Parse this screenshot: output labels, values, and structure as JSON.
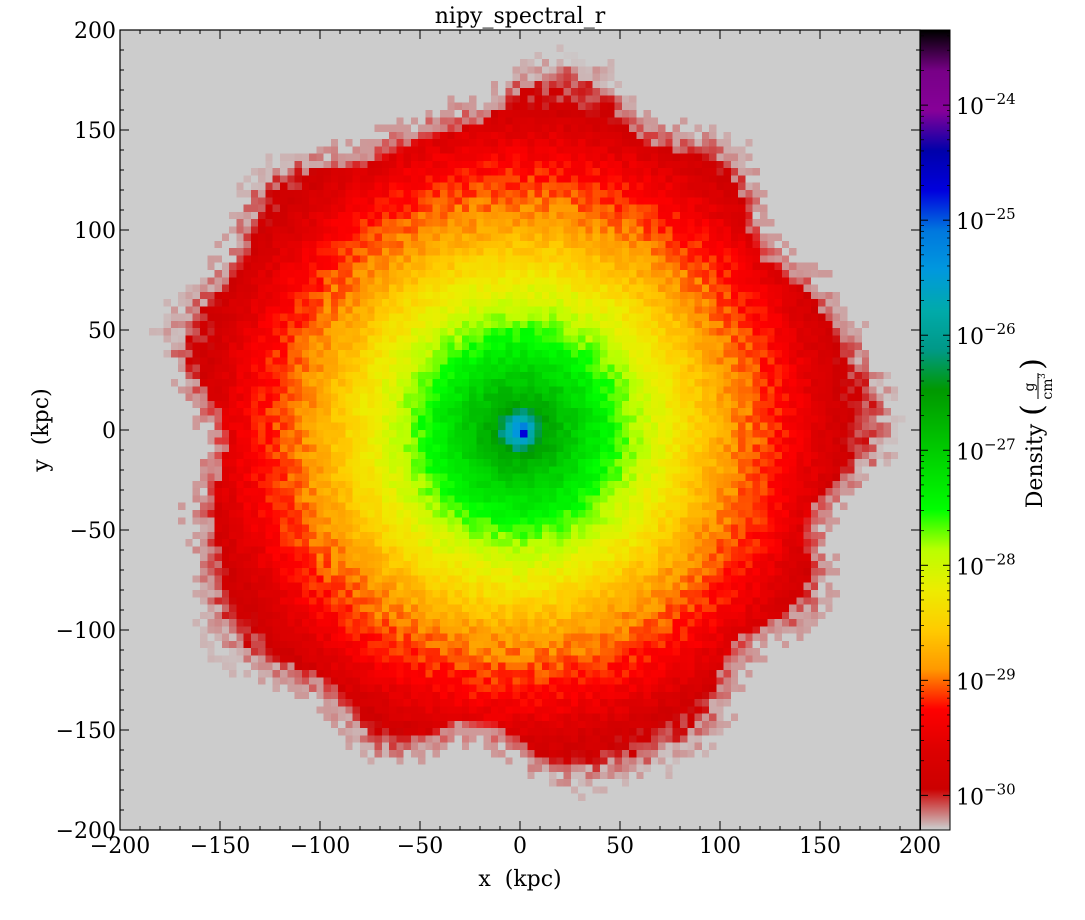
{
  "chart_data": {
    "type": "heatmap",
    "title": "nipy_spectral_r",
    "xlabel": "x  (kpc)",
    "ylabel": "y  (kpc)",
    "xlim": [
      -200,
      200
    ],
    "ylim": [
      -200,
      200
    ],
    "xticks": [
      -200,
      -150,
      -100,
      -50,
      0,
      50,
      100,
      150,
      200
    ],
    "yticks": [
      -200,
      -150,
      -100,
      -50,
      0,
      50,
      100,
      150,
      200
    ],
    "xtick_labels": [
      "−200",
      "−150",
      "−100",
      "−50",
      "0",
      "50",
      "100",
      "150",
      "200"
    ],
    "ytick_labels": [
      "−200",
      "−150",
      "−100",
      "−50",
      "0",
      "50",
      "100",
      "150",
      "200"
    ],
    "background_color": "#cccccc",
    "colormap": "nipy_spectral_r",
    "colorbar": {
      "label": "Density",
      "unit_numerator": "g",
      "unit_denominator": "cm",
      "unit_denominator_exp": "3",
      "scale": "log",
      "range": [
        5e-31,
        4.5e-24
      ],
      "tick_exponents": [
        -24,
        -25,
        -26,
        -27,
        -28,
        -29,
        -30
      ],
      "tick_base": "10",
      "tick_sign": "−"
    },
    "profile": [
      {
        "r_kpc": 0,
        "log_density": -24.6
      },
      {
        "r_kpc": 5,
        "log_density": -25.6
      },
      {
        "r_kpc": 12,
        "log_density": -26.6
      },
      {
        "r_kpc": 40,
        "log_density": -27.35
      },
      {
        "r_kpc": 60,
        "log_density": -27.9
      },
      {
        "r_kpc": 100,
        "log_density": -28.8
      },
      {
        "r_kpc": 135,
        "log_density": -29.3
      },
      {
        "r_kpc": 165,
        "log_density": -29.95
      },
      {
        "r_kpc": 190,
        "log_density": -30.25
      }
    ],
    "grid": false
  }
}
